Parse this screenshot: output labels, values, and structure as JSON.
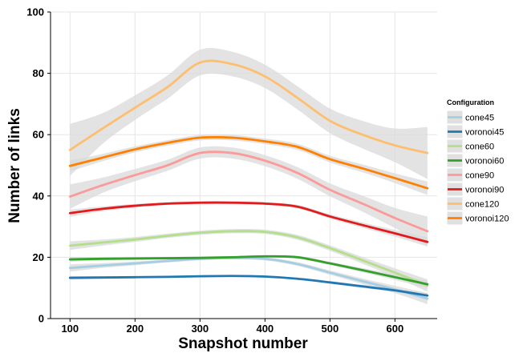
{
  "chart_data": {
    "type": "line",
    "title": "",
    "xlabel": "Snapshot number",
    "ylabel": "Number of links",
    "xlim": [
      70,
      665
    ],
    "ylim": [
      0,
      100
    ],
    "x_ticks": [
      100,
      200,
      300,
      400,
      500,
      600
    ],
    "y_ticks": [
      0,
      20,
      40,
      60,
      80,
      100
    ],
    "grid": true,
    "legend_title": "Configuration",
    "legend_position": "right",
    "band_color": "#d9d9d9",
    "series": [
      {
        "name": "cone45",
        "color": "#a6cee3",
        "x": [
          100,
          150,
          200,
          250,
          300,
          350,
          400,
          450,
          500,
          550,
          600,
          650
        ],
        "y": [
          16.5,
          17.3,
          18.0,
          18.8,
          19.5,
          19.8,
          19.5,
          17.8,
          15.0,
          12.2,
          9.5,
          6.5
        ],
        "band": [
          1.2,
          0.8,
          0.6,
          0.5,
          0.5,
          0.5,
          0.5,
          0.6,
          0.7,
          0.9,
          1.2,
          1.8
        ]
      },
      {
        "name": "voronoi45",
        "color": "#1f78b4",
        "x": [
          100,
          150,
          200,
          250,
          300,
          350,
          400,
          450,
          500,
          550,
          600,
          650
        ],
        "y": [
          13.3,
          13.4,
          13.5,
          13.6,
          13.8,
          13.9,
          13.7,
          13.0,
          11.8,
          10.5,
          9.2,
          7.5
        ],
        "band": [
          0.6,
          0.4,
          0.3,
          0.3,
          0.3,
          0.3,
          0.3,
          0.3,
          0.4,
          0.5,
          0.6,
          0.9
        ]
      },
      {
        "name": "cone60",
        "color": "#b2df8a",
        "x": [
          100,
          150,
          200,
          250,
          300,
          350,
          400,
          450,
          500,
          550,
          600,
          650
        ],
        "y": [
          23.8,
          24.8,
          25.8,
          27.0,
          28.0,
          28.5,
          28.3,
          26.5,
          23.0,
          19.0,
          15.0,
          10.8
        ],
        "band": [
          1.4,
          1.0,
          0.8,
          0.7,
          0.7,
          0.7,
          0.7,
          0.8,
          0.9,
          1.1,
          1.4,
          2.0
        ]
      },
      {
        "name": "voronoi60",
        "color": "#33a02c",
        "x": [
          100,
          150,
          200,
          250,
          300,
          350,
          400,
          450,
          500,
          550,
          600,
          650
        ],
        "y": [
          19.3,
          19.5,
          19.6,
          19.7,
          19.8,
          20.0,
          20.3,
          20.0,
          18.0,
          15.8,
          13.5,
          11.2
        ],
        "band": [
          0.8,
          0.5,
          0.4,
          0.4,
          0.4,
          0.4,
          0.4,
          0.5,
          0.5,
          0.7,
          0.9,
          1.2
        ]
      },
      {
        "name": "cone90",
        "color": "#fb9a99",
        "x": [
          100,
          150,
          200,
          250,
          300,
          350,
          400,
          450,
          500,
          550,
          600,
          650
        ],
        "y": [
          39.8,
          43.5,
          46.8,
          50.0,
          54.0,
          54.0,
          51.5,
          47.5,
          42.0,
          37.5,
          32.8,
          28.5
        ],
        "band": [
          4.0,
          2.5,
          2.0,
          1.8,
          1.8,
          1.8,
          1.8,
          1.9,
          2.1,
          2.6,
          3.3,
          4.8
        ]
      },
      {
        "name": "voronoi90",
        "color": "#e31a1c",
        "x": [
          100,
          150,
          200,
          250,
          300,
          350,
          400,
          450,
          500,
          550,
          600,
          650
        ],
        "y": [
          34.4,
          35.8,
          36.8,
          37.5,
          37.8,
          37.8,
          37.5,
          36.5,
          33.3,
          30.5,
          27.8,
          25.0
        ],
        "band": [
          1.2,
          0.8,
          0.6,
          0.5,
          0.5,
          0.5,
          0.5,
          0.6,
          0.7,
          0.9,
          1.1,
          1.5
        ]
      },
      {
        "name": "cone120",
        "color": "#fdbf6f",
        "x": [
          100,
          150,
          200,
          250,
          300,
          350,
          400,
          450,
          500,
          550,
          600,
          650
        ],
        "y": [
          55.0,
          62.0,
          68.8,
          75.5,
          83.5,
          83.0,
          79.0,
          72.0,
          64.5,
          60.0,
          56.5,
          54.0
        ],
        "band": [
          8.5,
          5.0,
          4.0,
          3.8,
          4.2,
          4.0,
          3.8,
          3.8,
          4.0,
          4.5,
          5.5,
          8.5
        ]
      },
      {
        "name": "voronoi120",
        "color": "#ff7f00",
        "x": [
          100,
          150,
          200,
          250,
          300,
          350,
          400,
          450,
          500,
          550,
          600,
          650
        ],
        "y": [
          49.8,
          52.5,
          55.2,
          57.3,
          59.0,
          59.0,
          57.8,
          56.0,
          52.0,
          49.0,
          45.8,
          42.5
        ],
        "band": [
          1.8,
          1.2,
          1.0,
          0.9,
          0.9,
          0.9,
          0.9,
          1.0,
          1.1,
          1.3,
          1.6,
          2.2
        ]
      }
    ]
  }
}
